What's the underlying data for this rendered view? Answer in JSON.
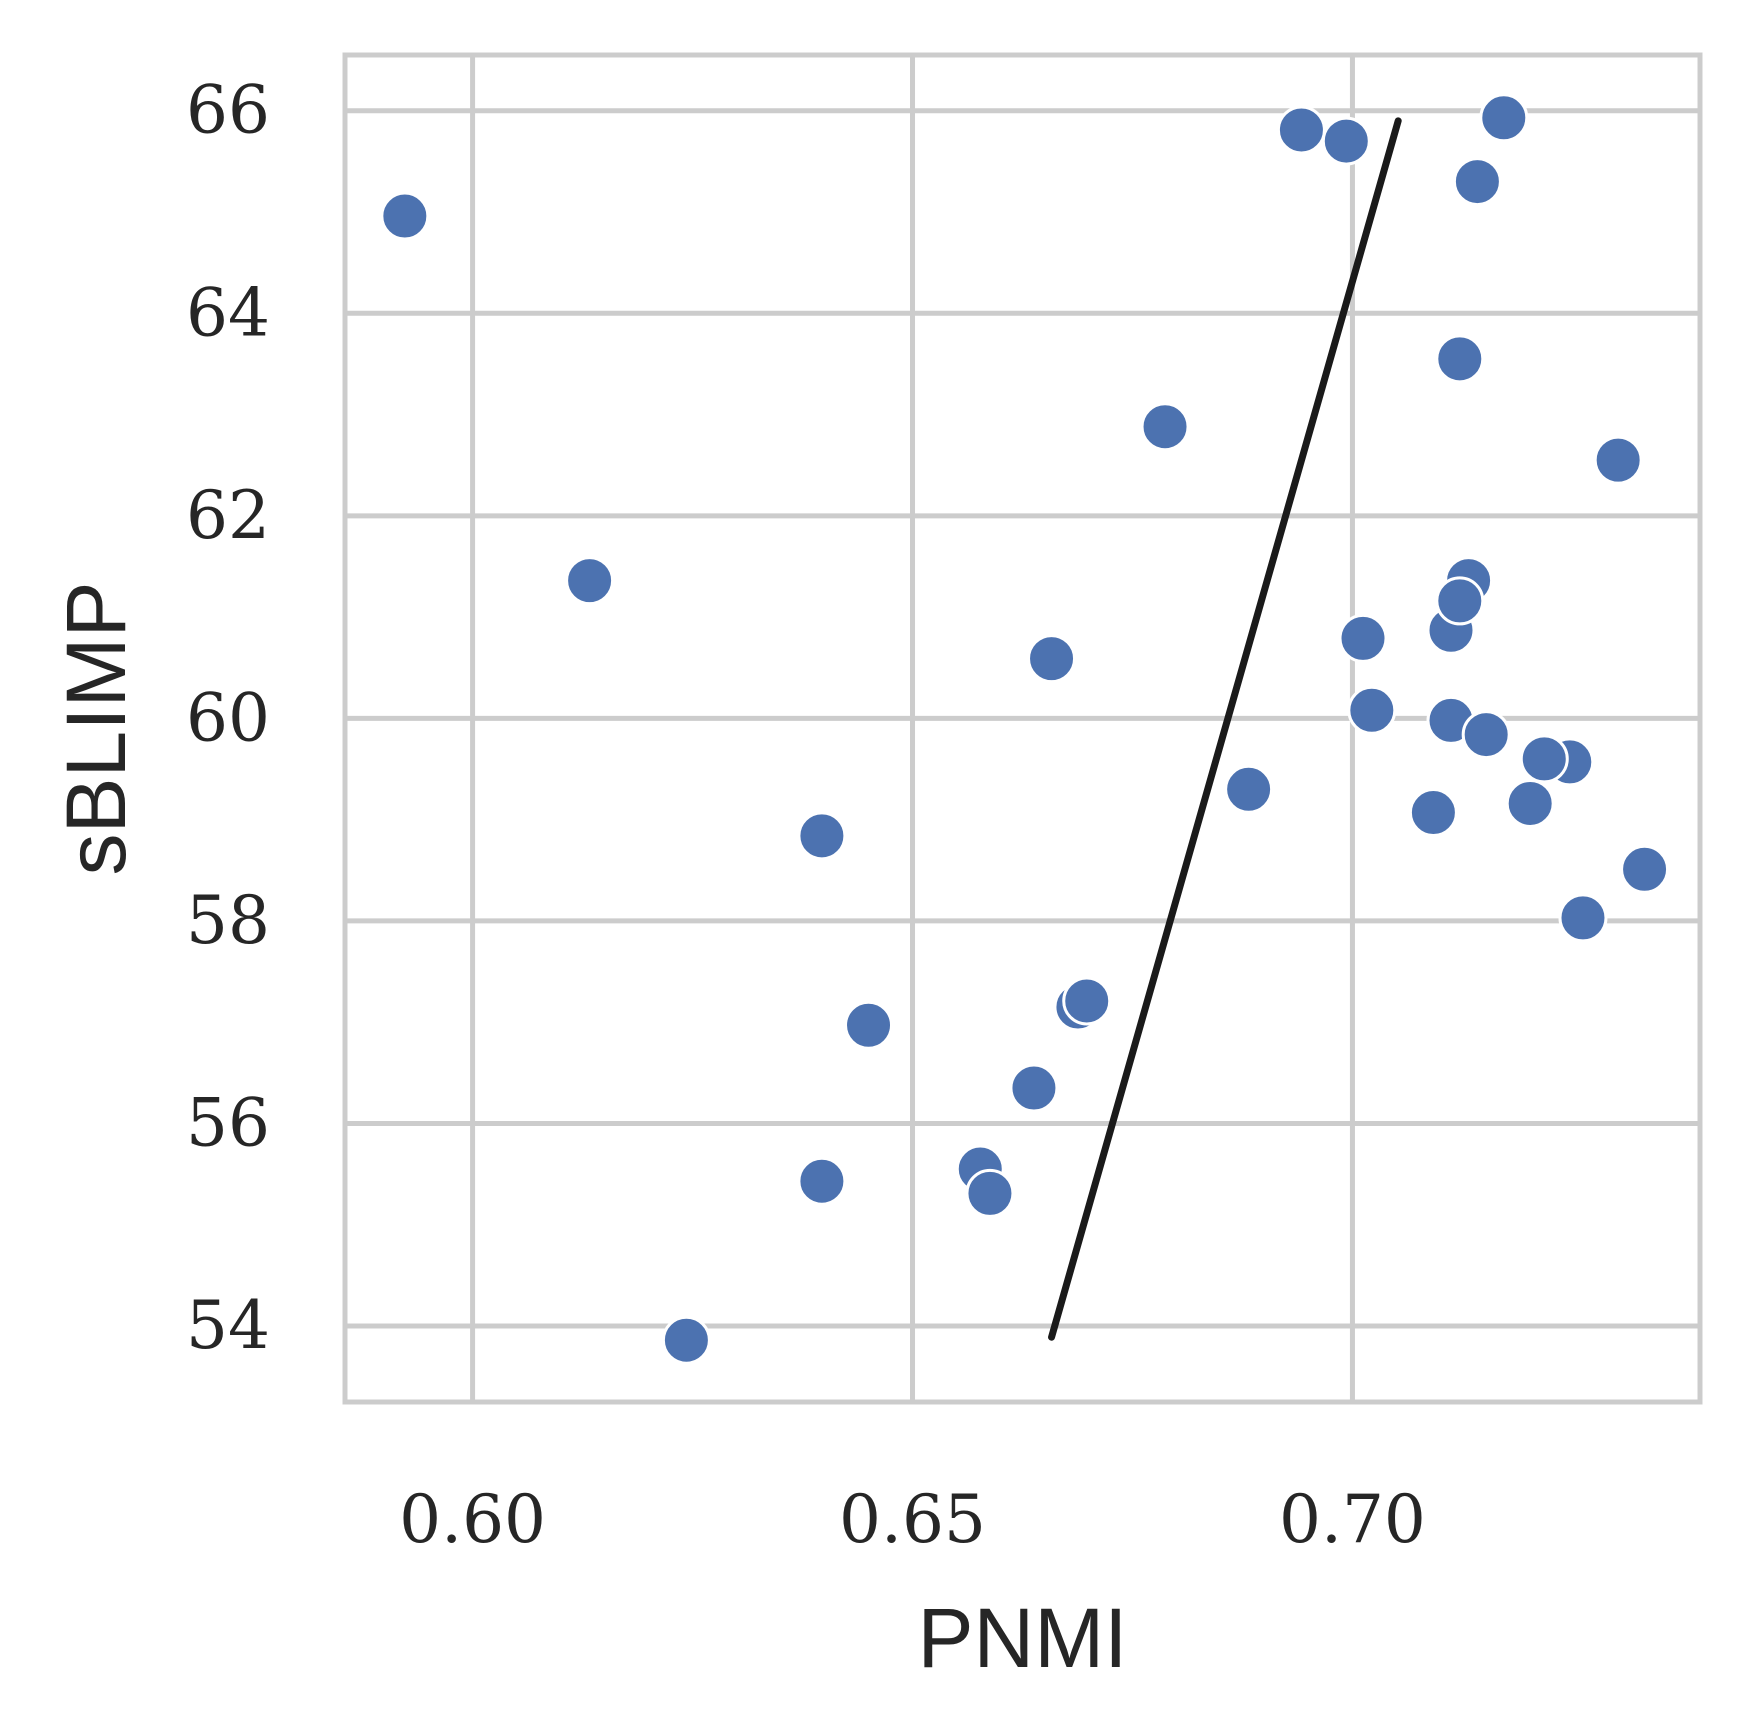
{
  "chart_data": {
    "type": "scatter",
    "title": "",
    "xlabel": "PNMI",
    "ylabel": "sBLIMP",
    "xlim": [
      0.5855,
      0.7395
    ],
    "ylim": [
      53.25,
      66.55
    ],
    "xticks": [
      0.6,
      0.65,
      0.7
    ],
    "xtick_labels": [
      "0.60",
      "0.65",
      "0.70"
    ],
    "yticks": [
      54,
      56,
      58,
      60,
      62,
      64,
      66
    ],
    "ytick_labels": [
      "54",
      "56",
      "58",
      "60",
      "62",
      "64",
      "66"
    ],
    "grid": true,
    "colors": {
      "points": "#4c72b0",
      "point_edge": "#ffffff",
      "trend_line": "#1a1a1a",
      "grid": "#cccccc",
      "text": "#262626"
    },
    "points": [
      {
        "x": 0.5923,
        "y": 64.96
      },
      {
        "x": 0.6133,
        "y": 61.36
      },
      {
        "x": 0.6243,
        "y": 53.86
      },
      {
        "x": 0.6397,
        "y": 58.84
      },
      {
        "x": 0.6397,
        "y": 55.43
      },
      {
        "x": 0.645,
        "y": 56.97
      },
      {
        "x": 0.6577,
        "y": 55.55
      },
      {
        "x": 0.6588,
        "y": 55.31
      },
      {
        "x": 0.6638,
        "y": 56.35
      },
      {
        "x": 0.6658,
        "y": 60.59
      },
      {
        "x": 0.6688,
        "y": 57.15
      },
      {
        "x": 0.6698,
        "y": 57.21
      },
      {
        "x": 0.6787,
        "y": 62.88
      },
      {
        "x": 0.6882,
        "y": 59.3
      },
      {
        "x": 0.6942,
        "y": 65.81
      },
      {
        "x": 0.6993,
        "y": 65.7
      },
      {
        "x": 0.7012,
        "y": 60.79
      },
      {
        "x": 0.7022,
        "y": 60.08
      },
      {
        "x": 0.7092,
        "y": 59.07
      },
      {
        "x": 0.7112,
        "y": 60.87
      },
      {
        "x": 0.7112,
        "y": 59.98
      },
      {
        "x": 0.7122,
        "y": 63.55
      },
      {
        "x": 0.7132,
        "y": 61.36
      },
      {
        "x": 0.7122,
        "y": 61.16
      },
      {
        "x": 0.7142,
        "y": 65.3
      },
      {
        "x": 0.7152,
        "y": 59.84
      },
      {
        "x": 0.7172,
        "y": 65.93
      },
      {
        "x": 0.7202,
        "y": 59.16
      },
      {
        "x": 0.7247,
        "y": 59.57
      },
      {
        "x": 0.7218,
        "y": 59.6
      },
      {
        "x": 0.7262,
        "y": 58.03
      },
      {
        "x": 0.7302,
        "y": 62.55
      },
      {
        "x": 0.7332,
        "y": 58.51
      }
    ],
    "trend_line": [
      {
        "x": 0.6658,
        "y": 53.89
      },
      {
        "x": 0.7052,
        "y": 65.9
      }
    ]
  }
}
